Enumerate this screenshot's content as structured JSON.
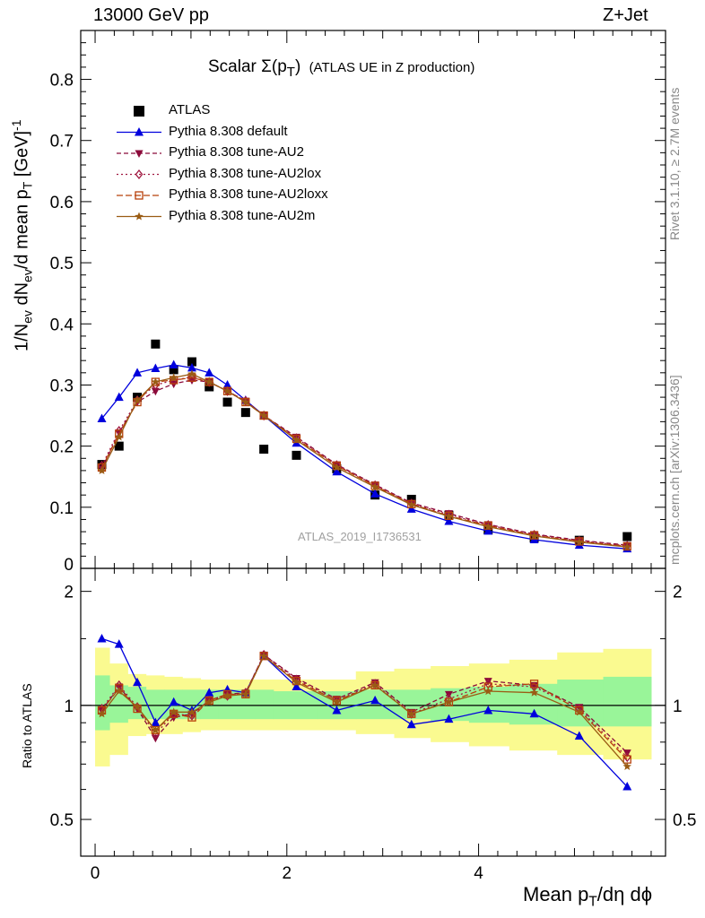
{
  "header": {
    "left": "13000 GeV pp",
    "right": "Z+Jet",
    "title_main": "Scalar Σ(p",
    "title_sub": "T",
    "title_close": ")",
    "title_extra": "(ATLAS UE in Z production)",
    "rivet": "Rivet 3.1.10, ≥ 2.7M events",
    "mcplots": "mcplots.cern.ch [arXiv:1306.3436]",
    "watermark": "ATLAS_2019_I1736531"
  },
  "axes": {
    "y_main_label_parts": [
      "1/N",
      "ev",
      " dN",
      "ev",
      "/d mean p",
      "T",
      " [GeV]",
      "-1"
    ],
    "y_ratio_label": "Ratio to ATLAS",
    "x_label_parts": [
      "Mean p",
      "T",
      "/dη dϕ"
    ],
    "main_yticks": [
      "0",
      "0.1",
      "0.2",
      "0.3",
      "0.4",
      "0.5",
      "0.6",
      "0.7",
      "0.8"
    ],
    "ratio_yticks": [
      "0.5",
      "1",
      "2"
    ],
    "xticks": [
      "0",
      "2",
      "4"
    ]
  },
  "colors": {
    "data": "#000000",
    "default": "#0000dd",
    "au2": "#8b0a3a",
    "au2lox": "#a01840",
    "au2loxx": "#b8400a",
    "au2m": "#9a5c14",
    "band_inner": "#99f599",
    "band_outer": "#fafa90"
  },
  "chart_data": {
    "type": "line",
    "xlim": [
      -0.15,
      5.95
    ],
    "ylim_main": [
      0,
      0.88
    ],
    "ylim_ratio": [
      0.4,
      2.3
    ],
    "ratio_log_scale": true,
    "legend_position": "top-left",
    "x": [
      0.07,
      0.25,
      0.44,
      0.63,
      0.82,
      1.01,
      1.19,
      1.38,
      1.57,
      1.76,
      2.1,
      2.52,
      2.92,
      3.3,
      3.69,
      4.1,
      4.58,
      5.05,
      5.55
    ],
    "x_edges": [
      0,
      0.15,
      0.34,
      0.53,
      0.72,
      0.91,
      1.1,
      1.29,
      1.48,
      1.67,
      1.86,
      2.32,
      2.72,
      3.12,
      3.5,
      3.9,
      4.32,
      4.82,
      5.3,
      5.8
    ],
    "series": [
      {
        "name": "ATLAS",
        "marker": "square",
        "colorKey": "data",
        "values": [
          0.17,
          0.2,
          0.28,
          0.367,
          0.325,
          0.338,
          0.297,
          0.272,
          0.255,
          0.195,
          0.185,
          0.163,
          0.12,
          0.113,
          0.087,
          0.063,
          0.05,
          0.046,
          0.052
        ]
      },
      {
        "name": "Pythia 8.308 default",
        "marker": "triangle-up",
        "colorKey": "default",
        "dash": "",
        "values": [
          0.245,
          0.28,
          0.32,
          0.327,
          0.333,
          0.328,
          0.32,
          0.3,
          0.275,
          0.25,
          0.205,
          0.158,
          0.122,
          0.097,
          0.077,
          0.061,
          0.047,
          0.038,
          0.032
        ]
      },
      {
        "name": "Pythia 8.308 tune-AU2",
        "marker": "triangle-down",
        "colorKey": "au2",
        "dash": "5,3",
        "values": [
          0.163,
          0.222,
          0.272,
          0.29,
          0.302,
          0.308,
          0.305,
          0.29,
          0.274,
          0.25,
          0.215,
          0.17,
          0.137,
          0.107,
          0.09,
          0.072,
          0.056,
          0.046,
          0.038
        ]
      },
      {
        "name": "Pythia 8.308 tune-AU2lox",
        "marker": "diamond",
        "colorKey": "au2lox",
        "dash": "2,3",
        "values": [
          0.168,
          0.225,
          0.275,
          0.3,
          0.308,
          0.313,
          0.305,
          0.29,
          0.274,
          0.25,
          0.213,
          0.169,
          0.136,
          0.106,
          0.088,
          0.071,
          0.055,
          0.045,
          0.037
        ]
      },
      {
        "name": "Pythia 8.308 tune-AU2loxx",
        "marker": "square-open",
        "colorKey": "au2loxx",
        "dash": "7,3",
        "values": [
          0.165,
          0.22,
          0.272,
          0.305,
          0.308,
          0.312,
          0.305,
          0.29,
          0.272,
          0.25,
          0.212,
          0.168,
          0.135,
          0.105,
          0.086,
          0.07,
          0.054,
          0.044,
          0.036
        ]
      },
      {
        "name": "Pythia 8.308 tune-AU2m",
        "marker": "star",
        "colorKey": "au2m",
        "dash": "",
        "values": [
          0.16,
          0.215,
          0.275,
          0.305,
          0.312,
          0.318,
          0.305,
          0.29,
          0.272,
          0.25,
          0.21,
          0.165,
          0.133,
          0.104,
          0.085,
          0.068,
          0.053,
          0.043,
          0.035
        ]
      }
    ],
    "ratio_series": [
      {
        "name": "Pythia 8.308 default",
        "values": [
          1.5,
          1.45,
          1.15,
          0.9,
          1.02,
          0.97,
          1.08,
          1.1,
          1.08,
          1.35,
          1.12,
          0.97,
          1.03,
          0.89,
          0.92,
          0.97,
          0.95,
          0.83,
          0.61
        ]
      },
      {
        "name": "Pythia 8.308 tune-AU2",
        "values": [
          0.97,
          1.12,
          0.98,
          0.82,
          0.93,
          0.95,
          1.03,
          1.07,
          1.08,
          1.36,
          1.18,
          1.04,
          1.15,
          0.96,
          1.07,
          1.16,
          1.13,
          0.99,
          0.75
        ]
      },
      {
        "name": "Pythia 8.308 tune-AU2lox",
        "values": [
          0.98,
          1.13,
          0.99,
          0.84,
          0.95,
          0.94,
          1.03,
          1.06,
          1.08,
          1.36,
          1.17,
          1.03,
          1.14,
          0.95,
          1.04,
          1.14,
          1.12,
          0.98,
          0.73
        ]
      },
      {
        "name": "Pythia 8.308 tune-AU2loxx",
        "values": [
          0.97,
          1.11,
          0.98,
          0.86,
          0.95,
          0.93,
          1.03,
          1.07,
          1.07,
          1.35,
          1.16,
          1.03,
          1.13,
          0.95,
          1.02,
          1.12,
          1.14,
          0.97,
          0.72
        ]
      },
      {
        "name": "Pythia 8.308 tune-AU2m",
        "values": [
          0.95,
          1.09,
          0.99,
          0.86,
          0.96,
          0.96,
          1.02,
          1.06,
          1.07,
          1.35,
          1.15,
          1.02,
          1.13,
          0.95,
          1.02,
          1.09,
          1.08,
          0.96,
          0.69
        ]
      }
    ],
    "ratio_band_inner": [
      [
        0.86,
        1.2
      ],
      [
        0.9,
        1.13
      ],
      [
        0.92,
        1.12
      ],
      [
        0.92,
        1.1
      ],
      [
        0.92,
        1.1
      ],
      [
        0.92,
        1.1
      ],
      [
        0.92,
        1.1
      ],
      [
        0.92,
        1.1
      ],
      [
        0.92,
        1.1
      ],
      [
        0.92,
        1.1
      ],
      [
        0.92,
        1.09
      ],
      [
        0.92,
        1.09
      ],
      [
        0.92,
        1.1
      ],
      [
        0.92,
        1.1
      ],
      [
        0.91,
        1.11
      ],
      [
        0.9,
        1.12
      ],
      [
        0.89,
        1.14
      ],
      [
        0.88,
        1.17
      ],
      [
        0.88,
        1.19
      ]
    ],
    "ratio_band_outer": [
      [
        0.69,
        1.42
      ],
      [
        0.74,
        1.29
      ],
      [
        0.83,
        1.21
      ],
      [
        0.84,
        1.2
      ],
      [
        0.84,
        1.19
      ],
      [
        0.85,
        1.18
      ],
      [
        0.86,
        1.17
      ],
      [
        0.86,
        1.17
      ],
      [
        0.86,
        1.17
      ],
      [
        0.86,
        1.17
      ],
      [
        0.86,
        1.17
      ],
      [
        0.86,
        1.17
      ],
      [
        0.84,
        1.23
      ],
      [
        0.82,
        1.25
      ],
      [
        0.8,
        1.27
      ],
      [
        0.78,
        1.29
      ],
      [
        0.76,
        1.32
      ],
      [
        0.74,
        1.38
      ],
      [
        0.72,
        1.41
      ]
    ]
  }
}
